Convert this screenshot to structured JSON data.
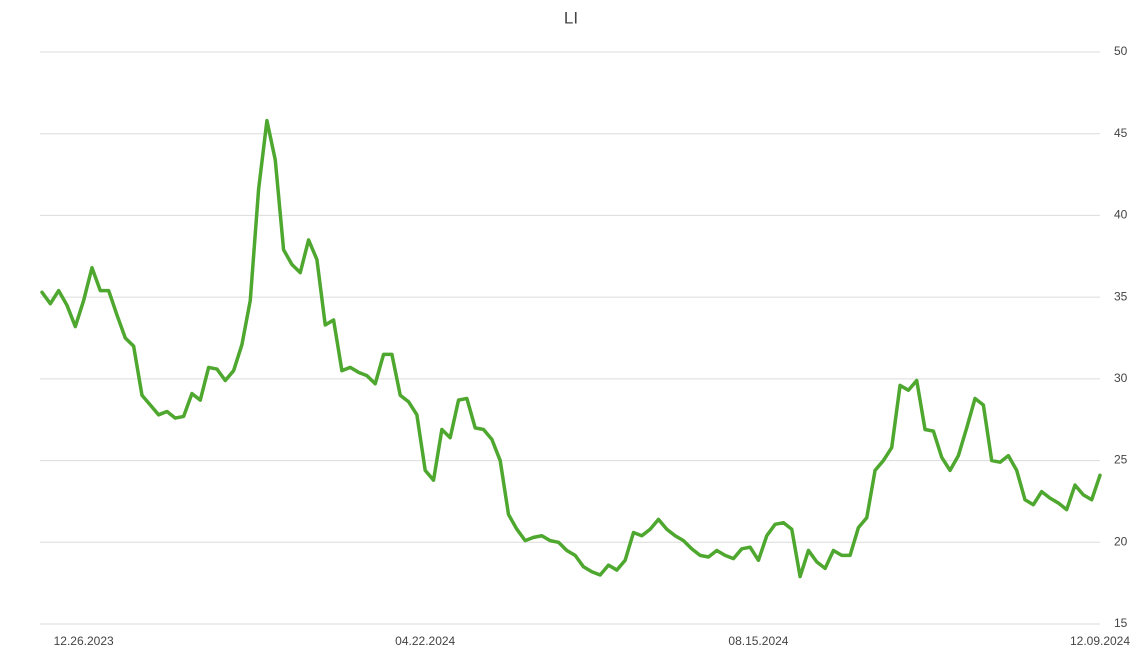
{
  "chart_data": {
    "type": "line",
    "title": "LI",
    "categories": [
      null,
      null,
      null,
      null,
      null,
      "12.26.2023",
      null,
      null,
      null,
      null,
      null,
      null,
      null,
      null,
      null,
      null,
      null,
      null,
      null,
      null,
      null,
      null,
      null,
      null,
      null,
      null,
      null,
      null,
      null,
      null,
      null,
      null,
      null,
      null,
      null,
      null,
      null,
      null,
      null,
      null,
      null,
      null,
      null,
      null,
      null,
      null,
      "04.22.2024",
      null,
      null,
      null,
      null,
      null,
      null,
      null,
      null,
      null,
      null,
      null,
      null,
      null,
      null,
      null,
      null,
      null,
      null,
      null,
      null,
      null,
      null,
      null,
      null,
      null,
      null,
      null,
      null,
      null,
      null,
      null,
      null,
      null,
      null,
      null,
      null,
      null,
      null,
      null,
      "08.15.2024",
      null,
      null,
      null,
      null,
      null,
      null,
      null,
      null,
      null,
      null,
      null,
      null,
      null,
      null,
      null,
      null,
      null,
      null,
      null,
      null,
      null,
      null,
      null,
      null,
      null,
      null,
      null,
      null,
      null,
      null,
      null,
      null,
      null,
      null,
      null,
      null,
      null,
      null,
      null,
      null,
      "12.09.2024"
    ],
    "values": [
      35.3,
      34.6,
      35.4,
      34.5,
      33.2,
      34.8,
      36.8,
      35.4,
      35.4,
      33.9,
      32.5,
      32.0,
      29.0,
      28.4,
      27.8,
      28.0,
      27.6,
      27.7,
      29.1,
      28.7,
      30.7,
      30.6,
      29.9,
      30.5,
      32.1,
      34.8,
      41.6,
      45.8,
      43.4,
      37.9,
      37.0,
      36.5,
      38.5,
      37.3,
      33.3,
      33.6,
      30.5,
      30.7,
      30.4,
      30.2,
      29.7,
      31.5,
      31.5,
      29.0,
      28.6,
      27.8,
      24.4,
      23.8,
      26.9,
      26.4,
      28.7,
      28.8,
      27.0,
      26.9,
      26.3,
      25.0,
      21.7,
      20.8,
      20.1,
      20.3,
      20.4,
      20.1,
      20.0,
      19.5,
      19.2,
      18.5,
      18.2,
      18.0,
      18.6,
      18.3,
      18.9,
      20.6,
      20.4,
      20.8,
      21.4,
      20.8,
      20.4,
      20.1,
      19.6,
      19.2,
      19.1,
      19.5,
      19.2,
      19.0,
      19.6,
      19.7,
      18.9,
      20.4,
      21.1,
      21.2,
      20.8,
      17.9,
      19.5,
      18.8,
      18.4,
      19.5,
      19.2,
      19.2,
      20.9,
      21.5,
      24.4,
      25.0,
      25.8,
      29.6,
      29.3,
      29.9,
      26.9,
      26.8,
      25.2,
      24.4,
      25.3,
      27.0,
      28.8,
      28.4,
      25.0,
      24.9,
      25.3,
      24.4,
      22.6,
      22.3,
      23.1,
      22.7,
      22.4,
      22.0,
      23.5,
      22.9,
      22.6,
      24.1
    ],
    "color": "#4ea72e",
    "ylim": [
      15,
      50
    ],
    "yticks": [
      15,
      20,
      25,
      30,
      35,
      40,
      45,
      50
    ],
    "grid": true
  }
}
